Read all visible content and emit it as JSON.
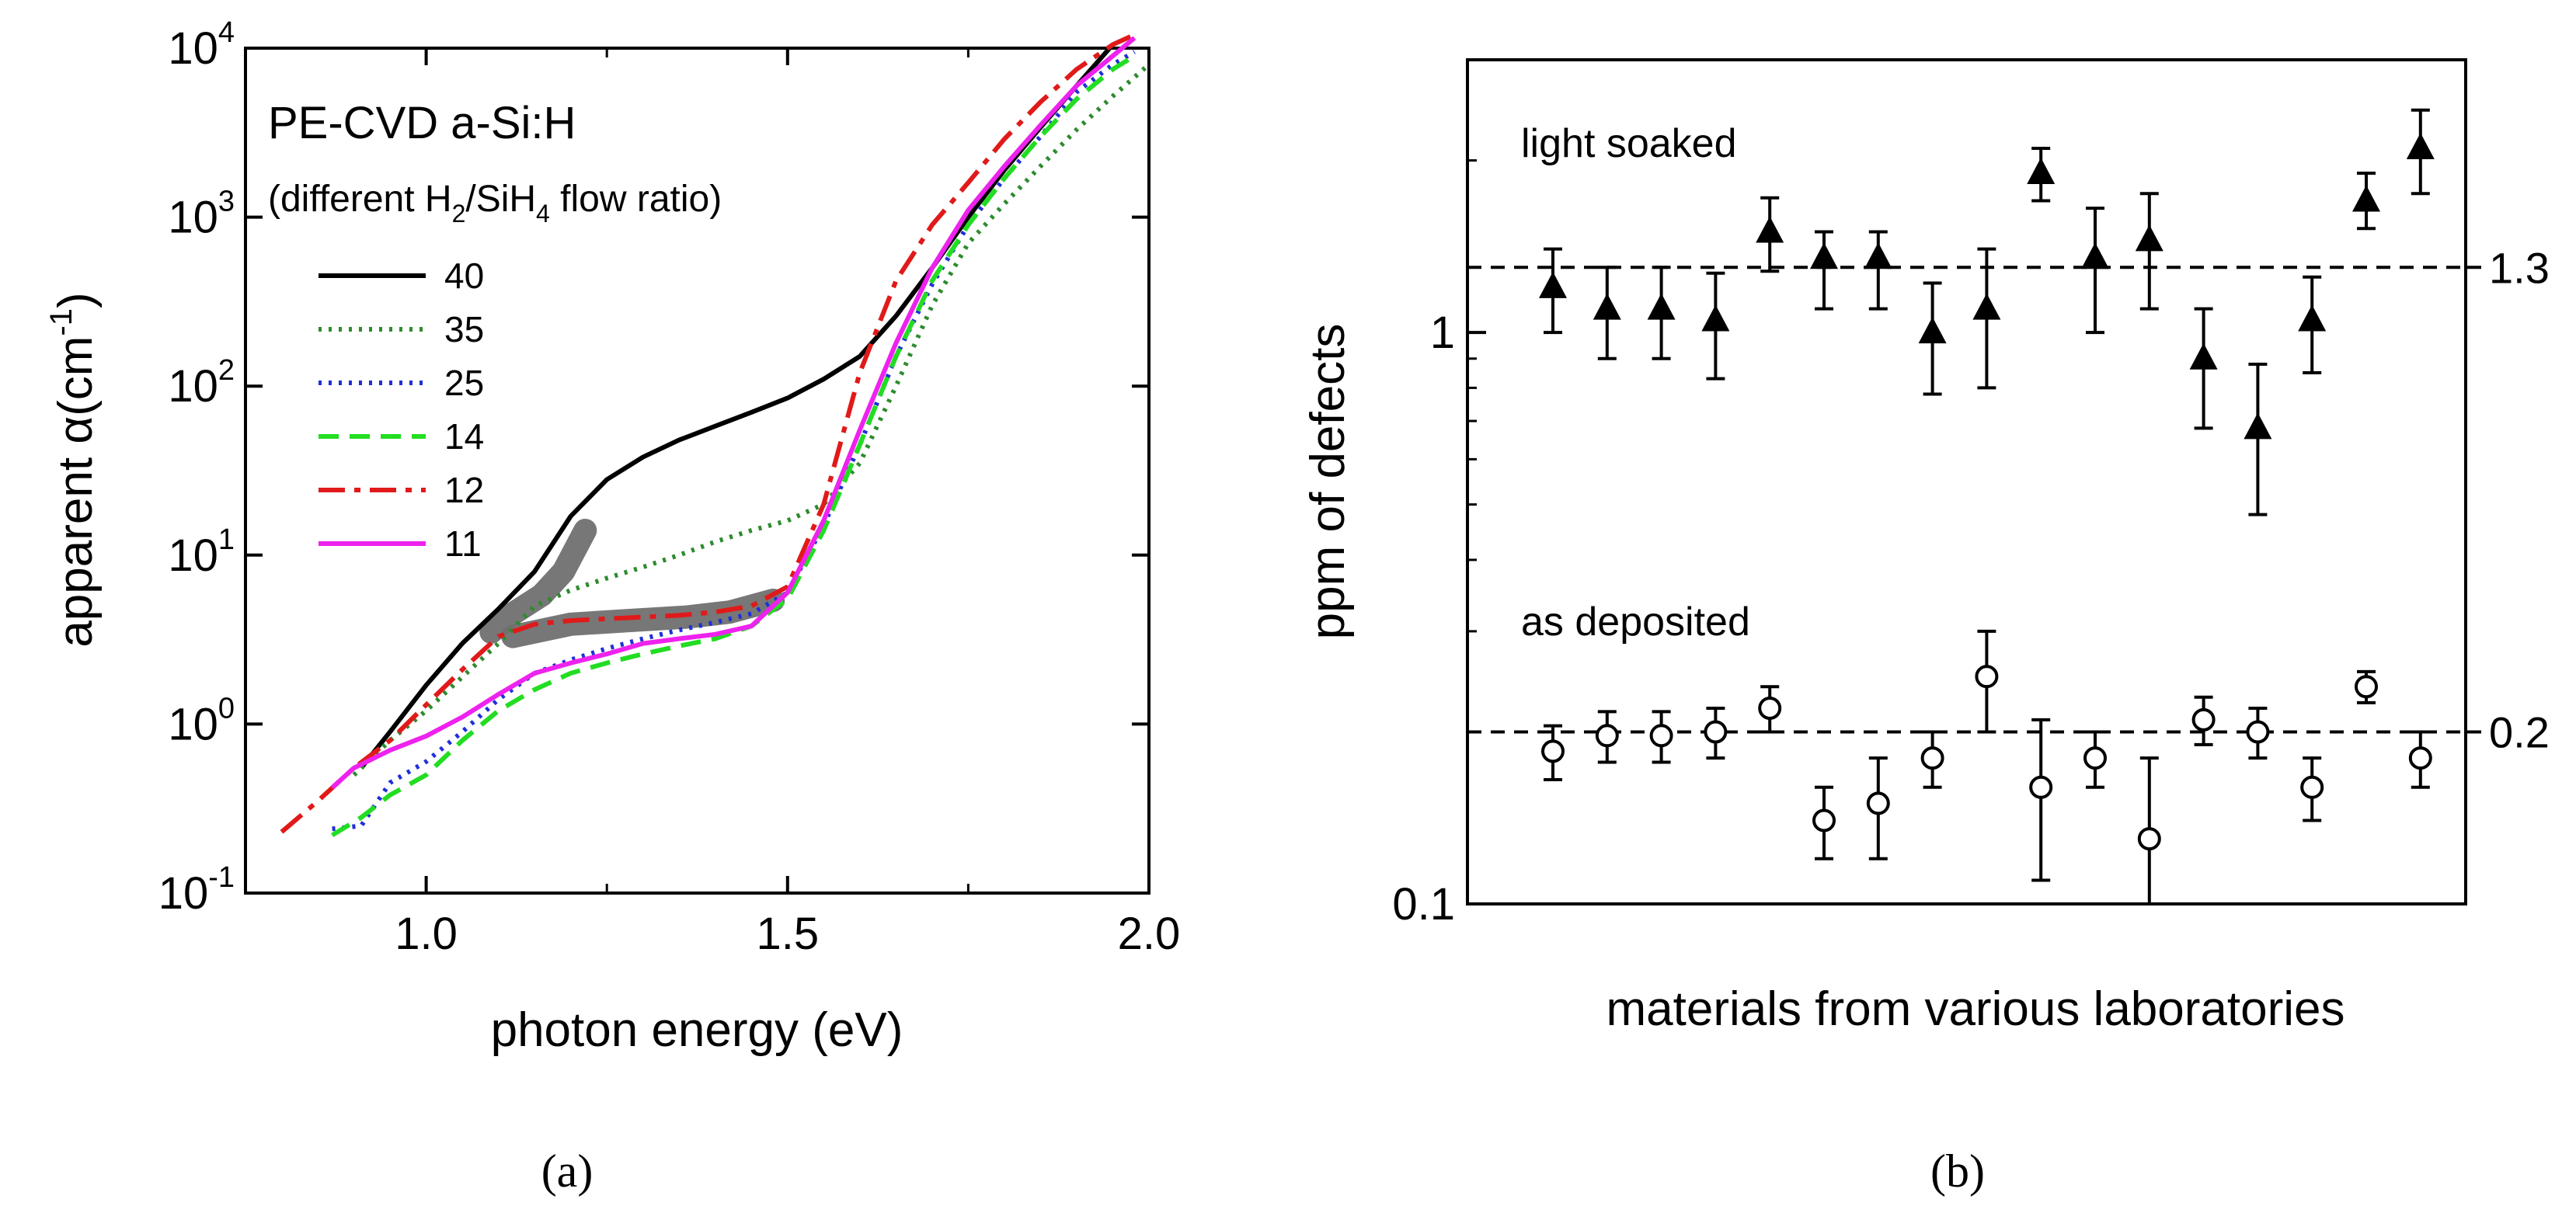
{
  "chart_data": [
    {
      "panel": "(a)",
      "type": "line",
      "title": "PE-CVD a-Si:H",
      "subtitle": {
        "pre": "(different H",
        "sub1": "2",
        "mid": "/SiH",
        "sub2": "4",
        "post": " flow ratio)"
      },
      "xlabel": "photon energy (eV)",
      "ylabel": {
        "main": "apparent α(cm",
        "sup": "-1",
        "close": ")"
      },
      "xlim": [
        0.75,
        2.0
      ],
      "ylim": [
        0.1,
        10000
      ],
      "yscale": "log",
      "xticks": [
        "1.0",
        "1.5",
        "2.0"
      ],
      "xtick_values": [
        1.0,
        1.5,
        2.0
      ],
      "yticks": [
        {
          "value": 0.1,
          "base": "10",
          "exp": "-1"
        },
        {
          "value": 1,
          "base": "10",
          "exp": "0"
        },
        {
          "value": 10,
          "base": "10",
          "exp": "1"
        },
        {
          "value": 100,
          "base": "10",
          "exp": "2"
        },
        {
          "value": 1000,
          "base": "10",
          "exp": "3"
        },
        {
          "value": 10000,
          "base": "10",
          "exp": "4"
        }
      ],
      "legend_position": "top-left",
      "series": [
        {
          "name": "40",
          "color": "#000000",
          "style": "solid",
          "x": [
            0.91,
            0.95,
            1.0,
            1.05,
            1.1,
            1.15,
            1.2,
            1.25,
            1.3,
            1.35,
            1.4,
            1.45,
            1.5,
            1.55,
            1.6,
            1.65,
            1.7,
            1.75,
            1.8,
            1.85,
            1.9,
            1.95
          ],
          "y": [
            0.55,
            0.9,
            1.7,
            3.0,
            4.8,
            8.0,
            17,
            28,
            38,
            48,
            58,
            70,
            85,
            110,
            150,
            260,
            500,
            1000,
            1900,
            3400,
            6000,
            10500
          ]
        },
        {
          "name": "35",
          "color": "#2e8b2e",
          "style": "dotted",
          "x": [
            0.9,
            0.95,
            1.0,
            1.05,
            1.1,
            1.15,
            1.2,
            1.25,
            1.3,
            1.35,
            1.4,
            1.45,
            1.5,
            1.55,
            1.6,
            1.65,
            1.7,
            1.75,
            1.8,
            1.85,
            1.9,
            1.95,
            2.0
          ],
          "y": [
            0.5,
            0.8,
            1.2,
            1.9,
            3.0,
            5.0,
            6.2,
            7.3,
            8.5,
            10,
            12,
            14,
            16,
            20,
            35,
            100,
            300,
            700,
            1200,
            2000,
            3300,
            5200,
            8000
          ]
        },
        {
          "name": "25",
          "color": "#1f2fd8",
          "style": "dotted",
          "x": [
            0.87,
            0.91,
            0.95,
            1.0,
            1.05,
            1.1,
            1.15,
            1.2,
            1.25,
            1.3,
            1.35,
            1.4,
            1.45,
            1.5,
            1.55,
            1.6,
            1.65,
            1.7,
            1.75,
            1.8,
            1.85,
            1.9,
            1.95,
            1.98
          ],
          "y": [
            0.24,
            0.25,
            0.45,
            0.6,
            0.9,
            1.4,
            2.0,
            2.4,
            2.8,
            3.2,
            3.6,
            4.0,
            4.5,
            6.0,
            15,
            45,
            150,
            400,
            900,
            1700,
            3000,
            5500,
            8000,
            9500
          ]
        },
        {
          "name": "14",
          "color": "#22dd22",
          "style": "dashed",
          "x": [
            0.87,
            0.91,
            0.95,
            1.0,
            1.05,
            1.1,
            1.15,
            1.2,
            1.25,
            1.3,
            1.35,
            1.4,
            1.45,
            1.5,
            1.55,
            1.6,
            1.65,
            1.7,
            1.75,
            1.8,
            1.85,
            1.9,
            1.95,
            1.98
          ],
          "y": [
            0.22,
            0.28,
            0.38,
            0.5,
            0.8,
            1.2,
            1.6,
            2.0,
            2.3,
            2.6,
            2.9,
            3.2,
            3.8,
            5.5,
            14,
            45,
            150,
            420,
            900,
            1700,
            3000,
            5000,
            7500,
            9000
          ]
        },
        {
          "name": "12",
          "color": "#e01a1a",
          "style": "dash-dot",
          "x": [
            0.8,
            0.85,
            0.9,
            0.95,
            1.0,
            1.05,
            1.1,
            1.15,
            1.2,
            1.25,
            1.3,
            1.35,
            1.4,
            1.45,
            1.5,
            1.55,
            1.6,
            1.65,
            1.7,
            1.75,
            1.8,
            1.85,
            1.9,
            1.95,
            1.98
          ],
          "y": [
            0.23,
            0.35,
            0.55,
            0.8,
            1.3,
            2.1,
            3.3,
            3.9,
            4.1,
            4.2,
            4.3,
            4.4,
            4.6,
            5.0,
            6.5,
            20,
            120,
            420,
            900,
            1600,
            2900,
            4800,
            7500,
            10500,
            12000
          ]
        },
        {
          "name": "11",
          "color": "#ee22ee",
          "style": "solid",
          "x": [
            0.87,
            0.9,
            0.95,
            1.0,
            1.05,
            1.1,
            1.15,
            1.2,
            1.25,
            1.3,
            1.35,
            1.4,
            1.45,
            1.5,
            1.55,
            1.6,
            1.65,
            1.7,
            1.75,
            1.8,
            1.85,
            1.9,
            1.95,
            1.98
          ],
          "y": [
            0.42,
            0.55,
            0.7,
            0.85,
            1.1,
            1.5,
            2.0,
            2.3,
            2.6,
            3.0,
            3.2,
            3.4,
            3.8,
            6.0,
            16,
            55,
            180,
            500,
            1100,
            2000,
            3500,
            6000,
            9000,
            11500
          ]
        }
      ],
      "highlights": [
        {
          "name": "40-region",
          "x": [
            1.09,
            1.12,
            1.16,
            1.19,
            1.22
          ],
          "y": [
            3.5,
            4.5,
            5.8,
            8.0,
            14
          ]
        },
        {
          "name": "12-region",
          "x": [
            1.12,
            1.2,
            1.28,
            1.36,
            1.42,
            1.48
          ],
          "y": [
            3.3,
            3.9,
            4.1,
            4.3,
            4.6,
            5.4
          ]
        }
      ],
      "caption": "(a)"
    },
    {
      "panel": "(b)",
      "type": "scatter",
      "xlabel": "materials from various laboratories",
      "ylabel": "ppm of defects",
      "yscale": "log",
      "ylim": [
        0.1,
        3.0
      ],
      "yticks": [
        "0.1",
        "1"
      ],
      "ytick_values": [
        0.1,
        1
      ],
      "reference_lines": [
        {
          "value": 1.3,
          "label": "1.3"
        },
        {
          "value": 0.2,
          "label": "0.2"
        }
      ],
      "series": [
        {
          "name": "light soaked",
          "marker": "filled-triangle",
          "x": [
            1,
            2,
            3,
            4,
            5,
            6,
            7,
            8,
            9,
            10,
            11,
            12,
            13,
            14,
            15,
            16,
            17
          ],
          "y": [
            1.2,
            1.1,
            1.1,
            1.05,
            1.5,
            1.35,
            1.35,
            1.0,
            1.1,
            1.9,
            1.35,
            1.45,
            0.9,
            0.68,
            1.05,
            1.7,
            2.1
          ],
          "err_low": [
            0.2,
            0.2,
            0.2,
            0.22,
            0.22,
            0.25,
            0.25,
            0.22,
            0.3,
            0.2,
            0.35,
            0.35,
            0.22,
            0.2,
            0.2,
            0.18,
            0.35
          ],
          "err_high": [
            0.2,
            0.2,
            0.2,
            0.22,
            0.22,
            0.15,
            0.15,
            0.22,
            0.3,
            0.2,
            0.3,
            0.3,
            0.2,
            0.2,
            0.2,
            0.2,
            0.35
          ]
        },
        {
          "name": "as deposited",
          "marker": "open-circle",
          "x": [
            1,
            2,
            3,
            4,
            5,
            6,
            7,
            8,
            9,
            10,
            11,
            12,
            13,
            14,
            15,
            16,
            17
          ],
          "y": [
            0.185,
            0.197,
            0.197,
            0.2,
            0.22,
            0.14,
            0.15,
            0.18,
            0.25,
            0.16,
            0.18,
            0.13,
            0.21,
            0.2,
            0.16,
            0.24,
            0.18
          ],
          "err_low": [
            0.02,
            0.02,
            0.02,
            0.02,
            0.02,
            0.02,
            0.03,
            0.02,
            0.05,
            0.05,
            0.02,
            0.04,
            0.02,
            0.02,
            0.02,
            0.015,
            0.02
          ],
          "err_high": [
            0.02,
            0.02,
            0.02,
            0.02,
            0.02,
            0.02,
            0.03,
            0.02,
            0.05,
            0.05,
            0.02,
            0.05,
            0.02,
            0.02,
            0.02,
            0.015,
            0.02
          ]
        }
      ],
      "annotations": [
        "light soaked",
        "as deposited"
      ],
      "caption": "(b)"
    }
  ]
}
